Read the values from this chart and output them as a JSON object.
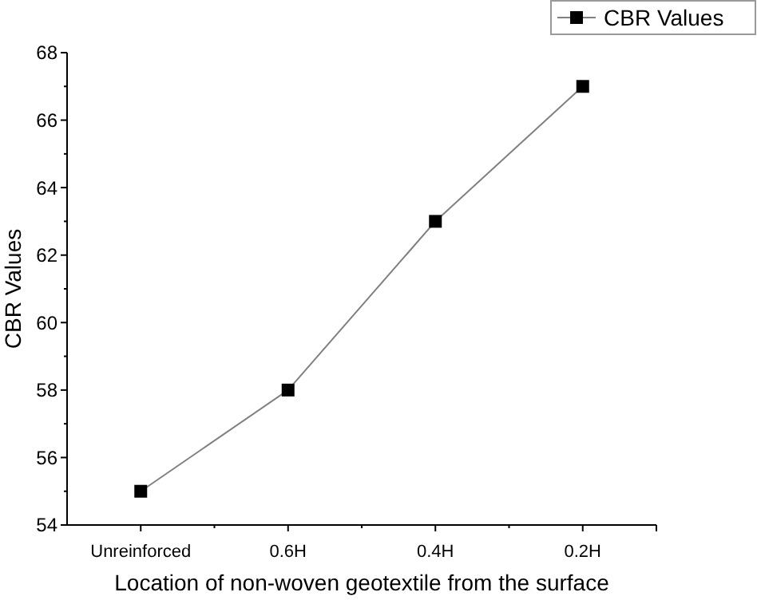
{
  "chart_data": {
    "type": "line",
    "xlabel": "Location of non-woven geotextile from the surface",
    "ylabel": "CBR Values",
    "categories": [
      "Unreinforced",
      "0.6H",
      "0.4H",
      "0.2H"
    ],
    "series": [
      {
        "name": "CBR Values",
        "color": "#808080",
        "values": [
          55,
          58,
          63,
          67
        ]
      }
    ],
    "ylim": [
      54,
      68
    ],
    "yticks": [
      54,
      56,
      58,
      60,
      62,
      64,
      66,
      68
    ],
    "marker": "square",
    "line_style": "solid",
    "legend": "top right",
    "grid": false
  }
}
